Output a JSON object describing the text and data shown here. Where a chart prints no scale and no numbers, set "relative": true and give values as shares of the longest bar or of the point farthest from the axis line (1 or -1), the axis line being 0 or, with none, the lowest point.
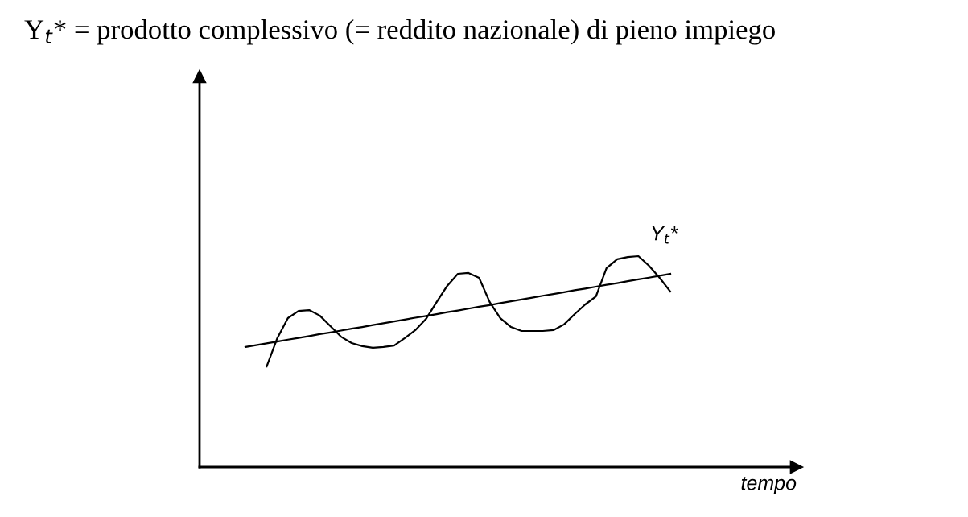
{
  "chart_data": {
    "type": "line",
    "relative": true,
    "title": "Y$_{t}$* = prodotto complessivo (= reddito nazionale) di pieno impiego",
    "xlabel": "tempo",
    "annotations": [
      "Y$_{t}$*"
    ],
    "categories": [
      null,
      null,
      null,
      null,
      null,
      null,
      null,
      null,
      null,
      null,
      null,
      null,
      null,
      null,
      null,
      null,
      null,
      null,
      null,
      null,
      null,
      null,
      null,
      null,
      null,
      null,
      null,
      null,
      null,
      null,
      null,
      null,
      null,
      null,
      null,
      null,
      null,
      null,
      null,
      null,
      null
    ],
    "series": [
      {
        "color": "#000000",
        "values": [
          null,
          null,
          0.477,
          0.611,
          0.706,
          0.74,
          0.744,
          0.718,
          0.668,
          0.618,
          0.588,
          0.573,
          0.565,
          0.569,
          0.576,
          0.611,
          0.649,
          0.702,
          0.782,
          0.859,
          0.916,
          0.92,
          0.897,
          0.782,
          0.706,
          0.664,
          0.645,
          0.645,
          0.645,
          0.649,
          0.676,
          0.725,
          0.771,
          0.809,
          0.943,
          0.985,
          0.996,
          1.0,
          0.954,
          0.897,
          0.832
        ]
      },
      {
        "color": "#000000",
        "values": [
          0.569,
          0.578,
          0.586,
          0.595,
          0.604,
          0.612,
          0.621,
          0.63,
          0.638,
          0.647,
          0.656,
          0.664,
          0.673,
          0.682,
          0.69,
          0.699,
          0.708,
          0.716,
          0.725,
          0.734,
          0.742,
          0.751,
          0.76,
          0.768,
          0.777,
          0.786,
          0.794,
          0.803,
          0.812,
          0.82,
          0.829,
          0.838,
          0.846,
          0.855,
          0.864,
          0.872,
          0.881,
          0.89,
          0.898,
          0.907,
          0.916
        ]
      }
    ],
    "grid": false,
    "legend": false
  }
}
